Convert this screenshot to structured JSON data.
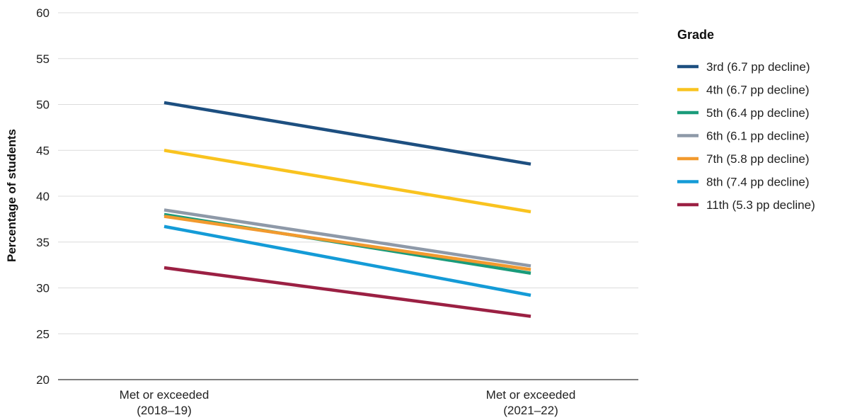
{
  "chart_data": {
    "type": "line",
    "categories": [
      [
        "Met or exceeded",
        "(2018–19)"
      ],
      [
        "Met or exceeded",
        "(2021–22)"
      ]
    ],
    "ylabel": "Percentage of students",
    "ylim": [
      20,
      60
    ],
    "yticks": [
      20,
      25,
      30,
      35,
      40,
      45,
      50,
      55,
      60
    ],
    "grid": true,
    "legend": {
      "title": "Grade",
      "placement": "right"
    },
    "series": [
      {
        "name": "3rd (6.7 pp decline)",
        "values": [
          50.2,
          43.5
        ],
        "color": "#1d4f80"
      },
      {
        "name": "4th (6.7 pp decline)",
        "values": [
          45.0,
          38.3
        ],
        "color": "#f9c31f"
      },
      {
        "name": "5th (6.4 pp decline)",
        "values": [
          38.0,
          31.6
        ],
        "color": "#1a9b7a"
      },
      {
        "name": "6th (6.1 pp decline)",
        "values": [
          38.5,
          32.4
        ],
        "color": "#8e99a8"
      },
      {
        "name": "7th (5.8 pp decline)",
        "values": [
          37.8,
          32.0
        ],
        "color": "#f29a2e"
      },
      {
        "name": "8th (7.4 pp decline)",
        "values": [
          36.7,
          29.2
        ],
        "color": "#149bd7"
      },
      {
        "name": "11th (5.3 pp decline)",
        "values": [
          32.2,
          26.9
        ],
        "color": "#9b2043"
      }
    ]
  }
}
